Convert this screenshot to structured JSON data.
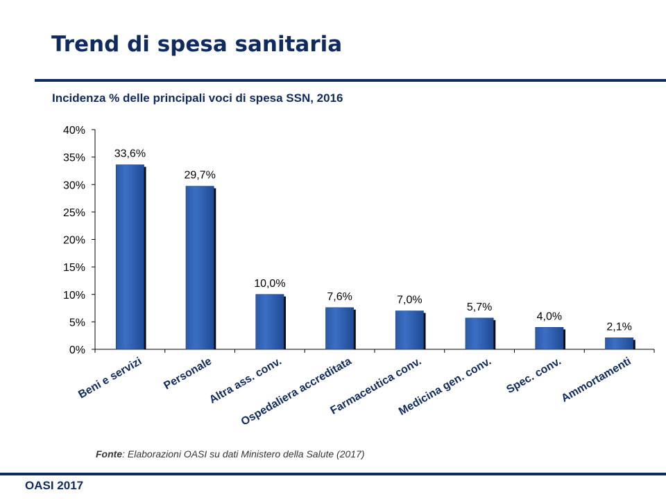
{
  "slide": {
    "title": "Trend di spesa sanitaria",
    "source_label": "Fonte",
    "source_text": ": Elaborazioni OASI su dati Ministero della Salute (2017)",
    "footer": "OASI 2017"
  },
  "colors": {
    "navy": "#0f2a5e",
    "bar": "#3b6fc4",
    "bar_shadow": "#0a0a0a"
  },
  "chart_data": {
    "type": "bar",
    "title": "Incidenza % delle principali voci di spesa SSN, 2016",
    "xlabel": "",
    "ylabel": "",
    "ylim": [
      0,
      40
    ],
    "yticks": [
      "0%",
      "5%",
      "10%",
      "15%",
      "20%",
      "25%",
      "30%",
      "35%",
      "40%"
    ],
    "categories": [
      "Beni e servizi",
      "Personale",
      "Altra ass. conv.",
      "Ospedaliera accreditata",
      "Farmaceutica conv.",
      "Medicina gen. conv.",
      "Spec. conv.",
      "Ammortamenti"
    ],
    "values": [
      33.6,
      29.7,
      10.0,
      7.6,
      7.0,
      5.7,
      4.0,
      2.1
    ],
    "data_labels": [
      "33,6%",
      "29,7%",
      "10,0%",
      "7,6%",
      "7,0%",
      "5,7%",
      "4,0%",
      "2,1%"
    ],
    "grid": false,
    "legend": "none"
  }
}
